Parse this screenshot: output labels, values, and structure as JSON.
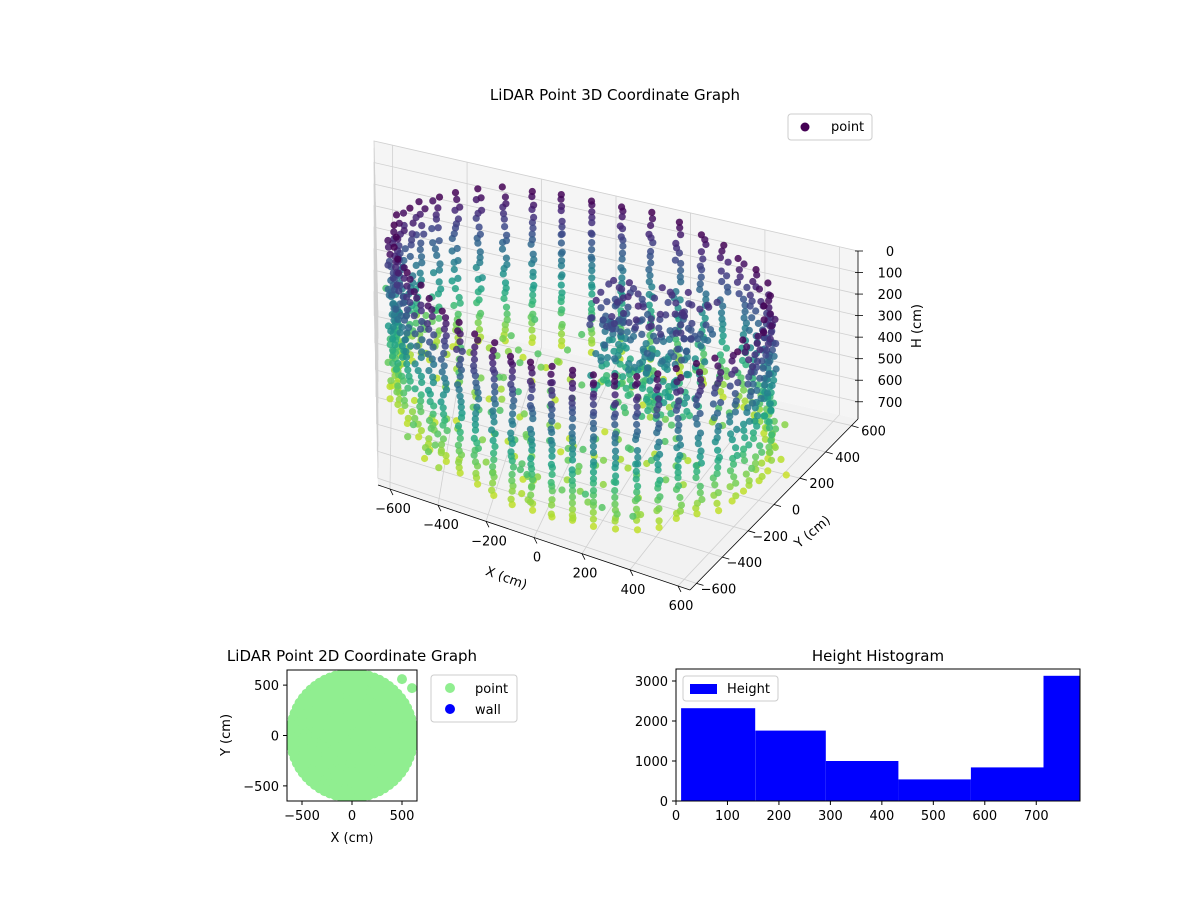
{
  "chart_data": [
    {
      "type": "scatter",
      "title": "LiDAR Point 3D Coordinate Graph",
      "xlabel": "X (cm)",
      "ylabel": "Y (cm)",
      "zlabel": "H (cm)",
      "xlim": [
        -650,
        650
      ],
      "ylim": [
        -650,
        650
      ],
      "zlim": [
        780,
        0
      ],
      "x_ticks": [
        -600,
        -400,
        -200,
        0,
        200,
        400,
        600
      ],
      "y_ticks": [
        -600,
        -400,
        -200,
        0,
        200,
        400,
        600
      ],
      "z_ticks": [
        0,
        100,
        200,
        300,
        400,
        500,
        600,
        700
      ],
      "legend": {
        "placement": "top-right",
        "entries": [
          {
            "label": "point",
            "color": "#440154"
          }
        ]
      },
      "colormap": "viridis",
      "description_data": {
        "ring_radius": 600,
        "ring_height_range": [
          0,
          700
        ],
        "inner_structure_center": [
          200,
          100
        ]
      }
    },
    {
      "type": "scatter",
      "title": "LiDAR Point 2D Coordinate Graph",
      "xlabel": "X (cm)",
      "ylabel": "Y (cm)",
      "xlim": [
        -650,
        650
      ],
      "ylim": [
        -650,
        650
      ],
      "x_ticks": [
        -500,
        0,
        500
      ],
      "y_ticks": [
        -500,
        0,
        500
      ],
      "legend": {
        "placement": "outside-right",
        "entries": [
          {
            "label": "point",
            "color": "#90ee90"
          },
          {
            "label": "wall",
            "color": "#0000ff"
          }
        ]
      },
      "series": [
        {
          "name": "point",
          "color": "#90ee90",
          "radius_max": 640
        }
      ]
    },
    {
      "type": "bar",
      "title": "Height Histogram",
      "xlim": [
        0,
        785
      ],
      "ylim": [
        0,
        3300
      ],
      "x_ticks": [
        0,
        100,
        200,
        300,
        400,
        500,
        600,
        700
      ],
      "y_ticks": [
        0,
        1000,
        2000,
        3000
      ],
      "legend": {
        "placement": "top-left",
        "entries": [
          {
            "label": "Height",
            "color": "#0000ff"
          }
        ]
      },
      "bins": [
        [
          10,
          154,
          2320
        ],
        [
          154,
          291,
          1760
        ],
        [
          291,
          432,
          1000
        ],
        [
          432,
          573,
          540
        ],
        [
          573,
          714,
          840
        ],
        [
          714,
          785,
          3130
        ]
      ],
      "series": [
        {
          "name": "Height",
          "color": "#0000ff"
        }
      ]
    }
  ]
}
